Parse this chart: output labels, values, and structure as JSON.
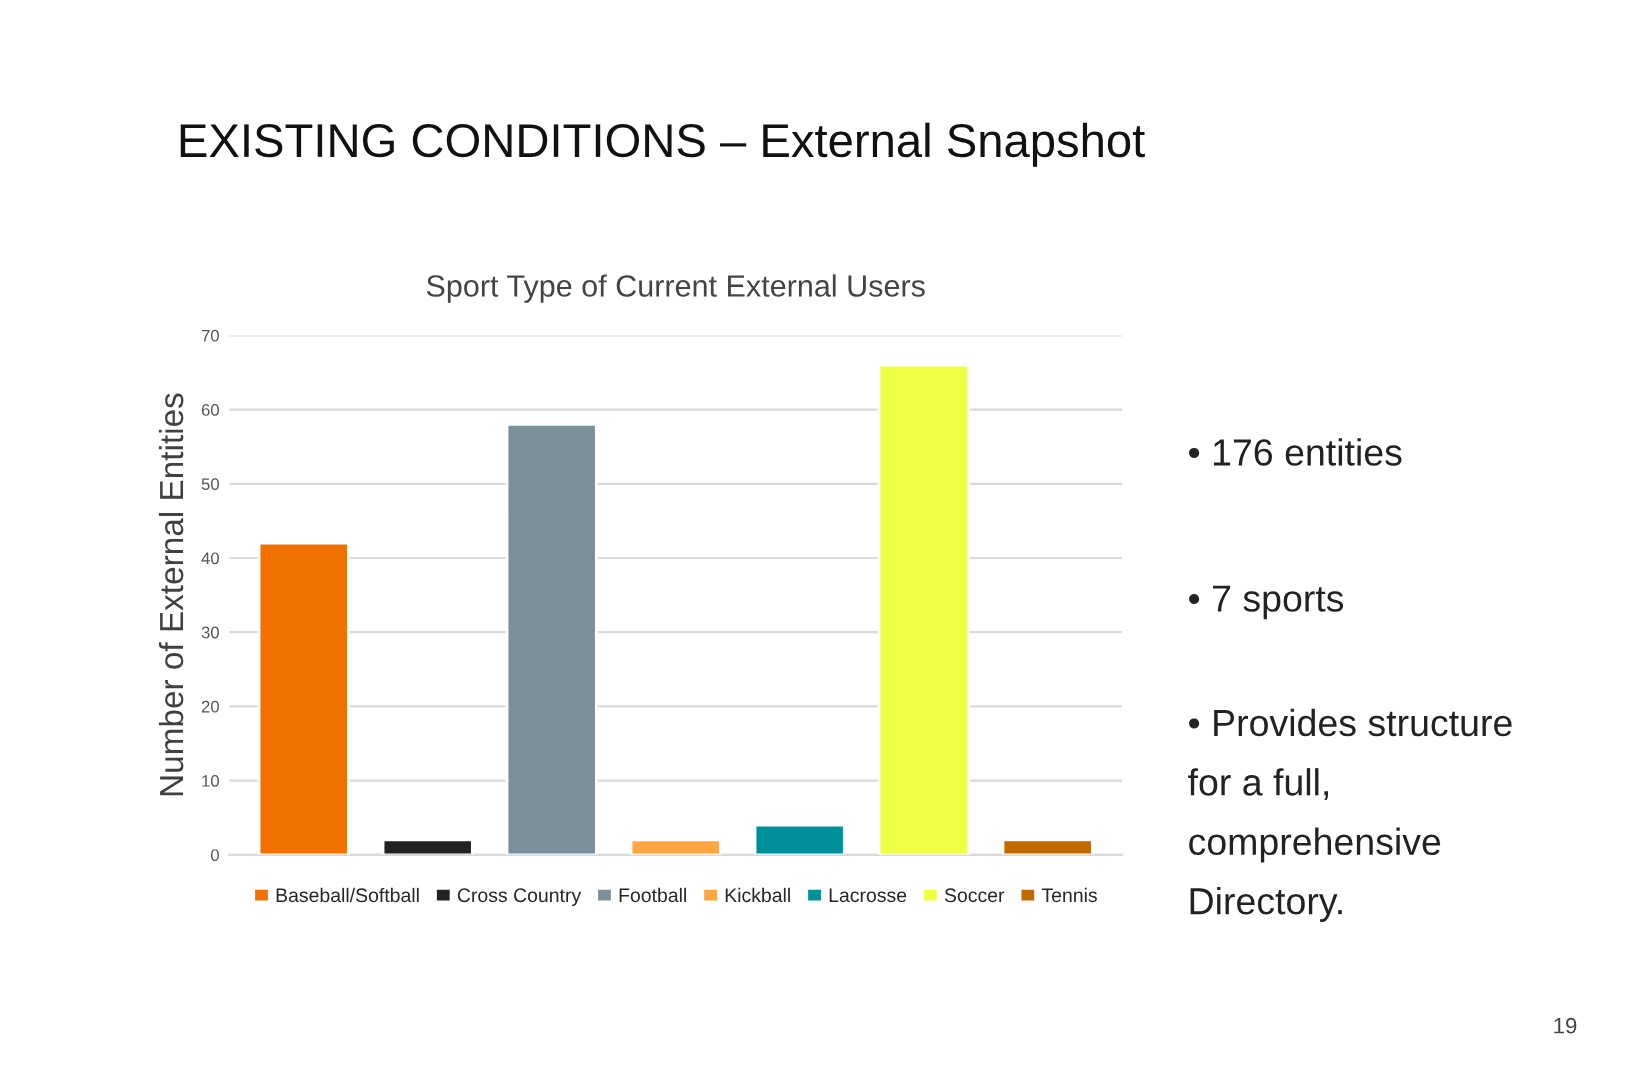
{
  "chart_data": {
    "type": "bar",
    "title": "EXISTING CONDITIONS – External Snapshot",
    "subtitle": "Sport Type of Current External Users",
    "ylabel": "Number of External Entities",
    "categories": [
      null,
      null,
      null,
      null,
      null,
      null,
      null
    ],
    "series": [
      {
        "name": "Baseball/Softball",
        "color": "#f07000",
        "values": [
          42,
          null,
          null,
          null,
          null,
          null,
          null
        ]
      },
      {
        "name": "Cross Country",
        "color": "#222222",
        "values": [
          null,
          2,
          null,
          null,
          null,
          null,
          null
        ]
      },
      {
        "name": "Football",
        "color": "#7a8f99",
        "values": [
          null,
          null,
          58,
          null,
          null,
          null,
          null
        ]
      },
      {
        "name": "Kickball",
        "color": "#ffa640",
        "values": [
          null,
          null,
          null,
          2,
          null,
          null,
          null
        ]
      },
      {
        "name": "Lacrosse",
        "color": "#00909a",
        "values": [
          null,
          null,
          null,
          null,
          4,
          null,
          null
        ]
      },
      {
        "name": "Soccer",
        "color": "#eeff44",
        "values": [
          null,
          null,
          null,
          null,
          null,
          66,
          null
        ]
      },
      {
        "name": "Tennis",
        "color": "#c06a00",
        "values": [
          null,
          null,
          null,
          null,
          null,
          null,
          2
        ]
      }
    ],
    "ylim": [
      0,
      70
    ],
    "yticks": [
      0,
      10,
      20,
      30,
      40,
      50,
      60,
      70
    ],
    "grid": "y",
    "legend": "bottom",
    "annotations": [
      "• 176 entities",
      "• 7 sports",
      "• Provides structure\nfor a full,\ncomprehensive\nDirectory.",
      "19"
    ]
  }
}
